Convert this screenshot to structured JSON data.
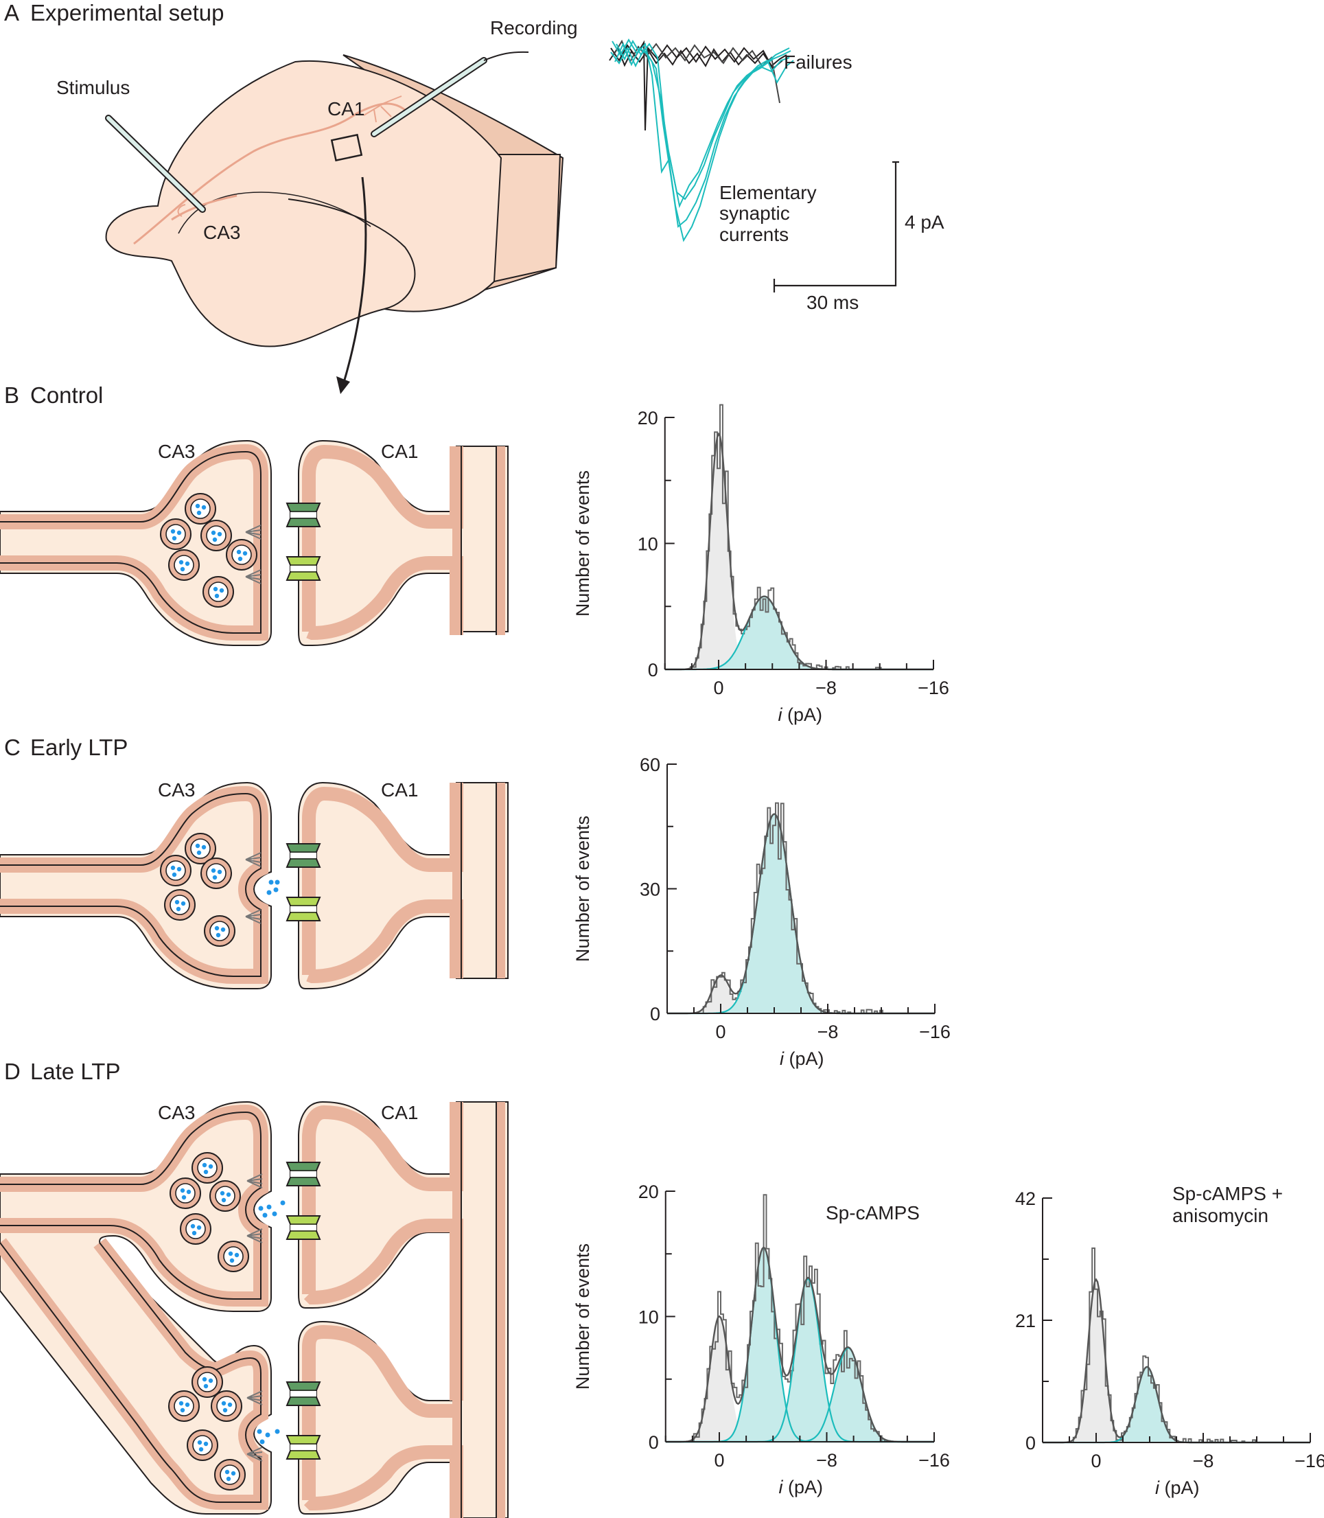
{
  "panels": {
    "A": {
      "letter": "A",
      "title": "Experimental setup",
      "stimulus": "Stimulus",
      "recording": "Recording",
      "ca1": "CA1",
      "ca3": "CA3",
      "failures": "Failures",
      "elementary": [
        "Elementary",
        "synaptic",
        "currents"
      ],
      "scale_y": "4 pA",
      "scale_x": "30 ms"
    },
    "B": {
      "letter": "B",
      "title": "Control",
      "ca3": "CA3",
      "ca1": "CA1"
    },
    "C": {
      "letter": "C",
      "title": "Early LTP",
      "ca3": "CA3",
      "ca1": "CA1"
    },
    "D": {
      "letter": "D",
      "title": "Late LTP",
      "ca3": "CA3",
      "ca1": "CA1",
      "legend1": "Sp-cAMPS",
      "legend2": [
        "Sp-cAMPS +",
        "anisomycin"
      ]
    }
  },
  "axis": {
    "ylabel": "Number of events",
    "xlabel_italic": "i",
    "xlabel_unit": " (pA)"
  },
  "colors": {
    "cell": "#fce9da",
    "membrane": "#e9b49d",
    "outline": "#231f20",
    "cyan": "#1cbcbc",
    "cyanFill": "#c6ebea",
    "failFill": "#ebebeb",
    "histLine": "#666666",
    "dot": "#2196e8",
    "receptorDark": "#5e9c63",
    "receptorLight": "#b4d957"
  },
  "chart_data": [
    {
      "type": "histogram",
      "panel": "B",
      "xlabel": "i (pA)",
      "ylabel": "Number of events",
      "xlim": [
        4,
        -16
      ],
      "ylim": [
        0,
        20
      ],
      "xticks": [
        "0",
        "−8",
        "−16"
      ],
      "yticks": [
        "0",
        "10",
        "20"
      ],
      "components": [
        {
          "name": "failures",
          "mean": 0,
          "sd": 0.65,
          "peak": 18.5
        },
        {
          "name": "successes",
          "mean": -3.4,
          "sd": 1.3,
          "peak": 5.8
        }
      ]
    },
    {
      "type": "histogram",
      "panel": "C",
      "xlabel": "i (pA)",
      "ylabel": "Number of events",
      "xlim": [
        4,
        -16
      ],
      "ylim": [
        0,
        60
      ],
      "xticks": [
        "0",
        "−8",
        "−16"
      ],
      "yticks": [
        "0",
        "30",
        "60"
      ],
      "components": [
        {
          "name": "failures",
          "mean": 0,
          "sd": 0.65,
          "peak": 9
        },
        {
          "name": "successes",
          "mean": -4,
          "sd": 1.2,
          "peak": 48
        }
      ]
    },
    {
      "type": "histogram",
      "panel": "D-left",
      "xlabel": "i (pA)",
      "ylabel": "Number of events",
      "legend": "Sp-cAMPS",
      "xlim": [
        4,
        -16
      ],
      "ylim": [
        0,
        20
      ],
      "xticks": [
        "0",
        "−8",
        "−16"
      ],
      "yticks": [
        "0",
        "10",
        "20"
      ],
      "components": [
        {
          "name": "failures",
          "mean": 0,
          "sd": 0.7,
          "peak": 10
        },
        {
          "name": "q1",
          "mean": -3.3,
          "sd": 0.9,
          "peak": 15.5
        },
        {
          "name": "q2",
          "mean": -6.6,
          "sd": 0.9,
          "peak": 13
        },
        {
          "name": "q3",
          "mean": -9.6,
          "sd": 1.0,
          "peak": 7.5
        }
      ]
    },
    {
      "type": "histogram",
      "panel": "D-right",
      "xlabel": "i (pA)",
      "ylabel": "Number of events",
      "legend": "Sp-cAMPS + anisomycin",
      "xlim": [
        4,
        -16
      ],
      "ylim": [
        0,
        42
      ],
      "xticks": [
        "0",
        "−8",
        "−16"
      ],
      "yticks": [
        "0",
        "21",
        "42"
      ],
      "components": [
        {
          "name": "failures",
          "mean": 0,
          "sd": 0.6,
          "peak": 28
        },
        {
          "name": "successes",
          "mean": -3.8,
          "sd": 0.8,
          "peak": 13
        }
      ]
    }
  ]
}
